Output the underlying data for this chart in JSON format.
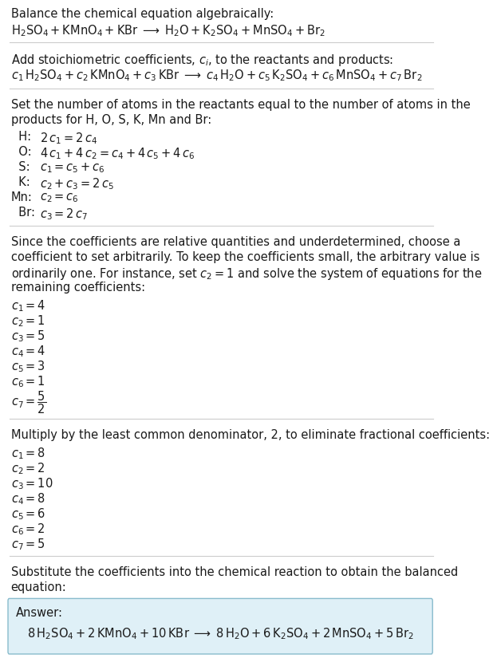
{
  "bg_color": "#ffffff",
  "text_color": "#1a1a1a",
  "answer_bg": "#dff0f7",
  "answer_border": "#88bbcc",
  "font_size": 10.5,
  "font_size_eq": 10.0,
  "sections": [
    {
      "type": "text",
      "lines": [
        "Balance the chemical equation algebraically:"
      ]
    },
    {
      "type": "math_line",
      "content": "$\\mathrm{H_2SO_4 + KMnO_4 + KBr} \\;\\longrightarrow\\; \\mathrm{H_2O + K_2SO_4 + MnSO_4 + Br_2}$"
    },
    {
      "type": "hrule"
    },
    {
      "type": "text",
      "lines": [
        "Add stoichiometric coefficients, $c_i$, to the reactants and products:"
      ]
    },
    {
      "type": "math_line",
      "content": "$c_1\\,\\mathrm{H_2SO_4} + c_2\\,\\mathrm{KMnO_4} + c_3\\,\\mathrm{KBr} \\;\\longrightarrow\\; c_4\\,\\mathrm{H_2O} + c_5\\,\\mathrm{K_2SO_4} + c_6\\,\\mathrm{MnSO_4} + c_7\\,\\mathrm{Br_2}$"
    },
    {
      "type": "hrule"
    },
    {
      "type": "text",
      "lines": [
        "Set the number of atoms in the reactants equal to the number of atoms in the",
        "products for H, O, S, K, Mn and Br:"
      ]
    },
    {
      "type": "equations",
      "items": [
        [
          "  H:",
          "$2\\,c_1 = 2\\,c_4$"
        ],
        [
          "  O:",
          "$4\\,c_1 + 4\\,c_2 = c_4 + 4\\,c_5 + 4\\,c_6$"
        ],
        [
          "  S:",
          "$c_1 = c_5 + c_6$"
        ],
        [
          "  K:",
          "$c_2 + c_3 = 2\\,c_5$"
        ],
        [
          "Mn:",
          "$c_2 = c_6$"
        ],
        [
          "  Br:",
          "$c_3 = 2\\,c_7$"
        ]
      ]
    },
    {
      "type": "hrule"
    },
    {
      "type": "text",
      "lines": [
        "Since the coefficients are relative quantities and underdetermined, choose a",
        "coefficient to set arbitrarily. To keep the coefficients small, the arbitrary value is",
        "ordinarily one. For instance, set $c_2 = 1$ and solve the system of equations for the",
        "remaining coefficients:"
      ]
    },
    {
      "type": "coeff_list",
      "items": [
        "$c_1 = 4$",
        "$c_2 = 1$",
        "$c_3 = 5$",
        "$c_4 = 4$",
        "$c_5 = 3$",
        "$c_6 = 1$",
        "$c_7 = \\dfrac{5}{2}$"
      ]
    },
    {
      "type": "hrule"
    },
    {
      "type": "text",
      "lines": [
        "Multiply by the least common denominator, 2, to eliminate fractional coefficients:"
      ]
    },
    {
      "type": "coeff_list",
      "items": [
        "$c_1 = 8$",
        "$c_2 = 2$",
        "$c_3 = 10$",
        "$c_4 = 8$",
        "$c_5 = 6$",
        "$c_6 = 2$",
        "$c_7 = 5$"
      ]
    },
    {
      "type": "hrule"
    },
    {
      "type": "text",
      "lines": [
        "Substitute the coefficients into the chemical reaction to obtain the balanced",
        "equation:"
      ]
    },
    {
      "type": "answer_box",
      "label": "Answer:",
      "eq": "$8\\,\\mathrm{H_2SO_4} + 2\\,\\mathrm{KMnO_4} + 10\\,\\mathrm{KBr} \\;\\longrightarrow\\; 8\\,\\mathrm{H_2O} + 6\\,\\mathrm{K_2SO_4} + 2\\,\\mathrm{MnSO_4} + 5\\,\\mathrm{Br_2}$"
    }
  ]
}
